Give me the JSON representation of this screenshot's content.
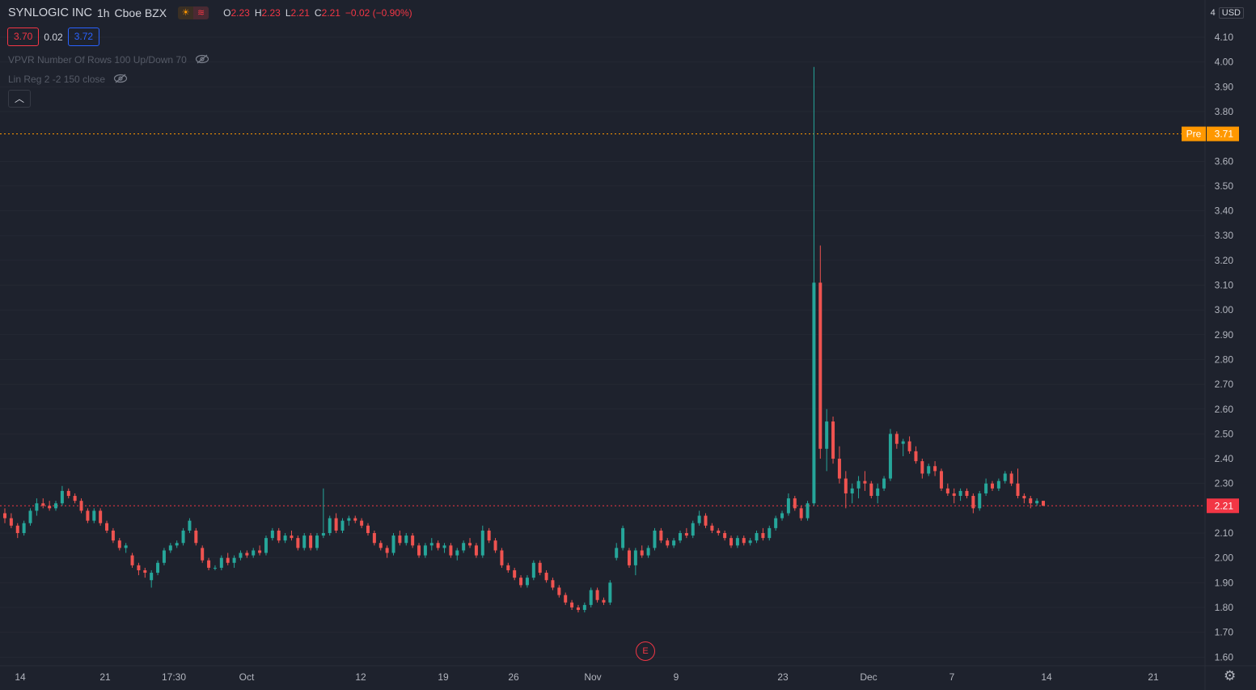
{
  "header": {
    "symbol": "SYNLOGIC INC",
    "interval": "1h",
    "exchange": "Cboe BZX",
    "open_label": "O",
    "open": "2.23",
    "high_label": "H",
    "high": "2.23",
    "low_label": "L",
    "low": "2.21",
    "close_label": "C",
    "close": "2.21",
    "change": "−0.02 (−0.90%)"
  },
  "quote": {
    "bid": "3.70",
    "spread": "0.02",
    "ask": "3.72"
  },
  "indicators": [
    {
      "label": "VPVR Number Of Rows 100 Up/Down 70",
      "icon": "eye-crossed-icon"
    },
    {
      "label": "Lin Reg 2 -2 150 close",
      "icon": "eye-crossed-icon"
    }
  ],
  "collapse_icon": "chevron-up-icon",
  "earnings_marker": "E",
  "currency": {
    "partial": "4",
    "unit": "USD"
  },
  "price_labels": {
    "pre": {
      "tag": "Pre",
      "value": "3.71",
      "color": "#ff9800"
    },
    "last": {
      "value": "2.21",
      "color": "#f23645"
    }
  },
  "colors": {
    "up": "#26a69a",
    "down": "#ef5350",
    "background": "#1e222d",
    "grid": "#2a2e39",
    "text": "#b2b5be"
  },
  "chart_data": {
    "type": "candlestick",
    "y_ticks": [
      "4.10",
      "4.00",
      "3.90",
      "3.80",
      "3.60",
      "3.50",
      "3.40",
      "3.30",
      "3.20",
      "3.10",
      "3.00",
      "2.90",
      "2.80",
      "2.70",
      "2.60",
      "2.50",
      "2.40",
      "2.30",
      "2.10",
      "2.00",
      "1.90",
      "1.80",
      "1.70",
      "1.60"
    ],
    "x_ticks": [
      "14",
      "21",
      "17:30",
      "Oct",
      "12",
      "19",
      "26",
      "Nov",
      "9",
      "23",
      "Dec",
      "7",
      "14",
      "21"
    ],
    "ylim": [
      1.56,
      4.15
    ],
    "candles": [
      [
        2.18,
        2.2,
        2.14,
        2.16
      ],
      [
        2.16,
        2.18,
        2.12,
        2.13
      ],
      [
        2.13,
        2.14,
        2.08,
        2.1
      ],
      [
        2.1,
        2.15,
        2.09,
        2.14
      ],
      [
        2.14,
        2.2,
        2.13,
        2.19
      ],
      [
        2.19,
        2.24,
        2.17,
        2.22
      ],
      [
        2.22,
        2.24,
        2.2,
        2.21
      ],
      [
        2.21,
        2.23,
        2.19,
        2.2
      ],
      [
        2.2,
        2.23,
        2.19,
        2.22
      ],
      [
        2.22,
        2.29,
        2.21,
        2.27
      ],
      [
        2.27,
        2.28,
        2.24,
        2.25
      ],
      [
        2.25,
        2.26,
        2.22,
        2.23
      ],
      [
        2.23,
        2.24,
        2.18,
        2.19
      ],
      [
        2.19,
        2.2,
        2.14,
        2.15
      ],
      [
        2.15,
        2.2,
        2.14,
        2.19
      ],
      [
        2.19,
        2.2,
        2.13,
        2.14
      ],
      [
        2.14,
        2.15,
        2.1,
        2.11
      ],
      [
        2.11,
        2.12,
        2.06,
        2.07
      ],
      [
        2.07,
        2.08,
        2.03,
        2.04
      ],
      [
        2.04,
        2.06,
        2.02,
        2.05
      ],
      [
        2.01,
        2.02,
        1.96,
        1.97
      ],
      [
        1.97,
        1.98,
        1.93,
        1.95
      ],
      [
        1.95,
        1.96,
        1.92,
        1.94
      ],
      [
        1.91,
        1.95,
        1.88,
        1.94
      ],
      [
        1.94,
        1.99,
        1.93,
        1.98
      ],
      [
        1.98,
        2.04,
        1.97,
        2.03
      ],
      [
        2.03,
        2.06,
        2.02,
        2.05
      ],
      [
        2.05,
        2.07,
        2.04,
        2.06
      ],
      [
        2.06,
        2.12,
        2.05,
        2.11
      ],
      [
        2.11,
        2.16,
        2.1,
        2.15
      ],
      [
        2.11,
        2.12,
        2.05,
        2.06
      ],
      [
        2.04,
        2.05,
        1.98,
        1.99
      ],
      [
        1.99,
        2.0,
        1.95,
        1.96
      ],
      [
        1.96,
        1.97,
        1.95,
        1.96
      ],
      [
        1.96,
        2.01,
        1.95,
        2.0
      ],
      [
        2.0,
        2.02,
        1.97,
        1.98
      ],
      [
        1.98,
        2.01,
        1.96,
        2.0
      ],
      [
        2.0,
        2.03,
        1.99,
        2.02
      ],
      [
        2.02,
        2.03,
        2.0,
        2.01
      ],
      [
        2.01,
        2.04,
        2.0,
        2.03
      ],
      [
        2.03,
        2.05,
        2.01,
        2.02
      ],
      [
        2.02,
        2.09,
        2.01,
        2.08
      ],
      [
        2.08,
        2.12,
        2.07,
        2.11
      ],
      [
        2.11,
        2.12,
        2.06,
        2.07
      ],
      [
        2.07,
        2.1,
        2.06,
        2.09
      ],
      [
        2.09,
        2.11,
        2.07,
        2.08
      ],
      [
        2.08,
        2.09,
        2.03,
        2.04
      ],
      [
        2.04,
        2.1,
        2.03,
        2.09
      ],
      [
        2.09,
        2.1,
        2.03,
        2.04
      ],
      [
        2.04,
        2.1,
        2.03,
        2.09
      ],
      [
        2.09,
        2.28,
        2.08,
        2.1
      ],
      [
        2.1,
        2.17,
        2.09,
        2.16
      ],
      [
        2.16,
        2.18,
        2.1,
        2.11
      ],
      [
        2.11,
        2.16,
        2.1,
        2.15
      ],
      [
        2.15,
        2.17,
        2.13,
        2.16
      ],
      [
        2.16,
        2.17,
        2.14,
        2.15
      ],
      [
        2.15,
        2.16,
        2.12,
        2.13
      ],
      [
        2.13,
        2.14,
        2.09,
        2.1
      ],
      [
        2.1,
        2.11,
        2.05,
        2.06
      ],
      [
        2.06,
        2.07,
        2.03,
        2.04
      ],
      [
        2.04,
        2.05,
        2.0,
        2.02
      ],
      [
        2.02,
        2.1,
        2.01,
        2.09
      ],
      [
        2.09,
        2.11,
        2.05,
        2.06
      ],
      [
        2.06,
        2.1,
        2.05,
        2.09
      ],
      [
        2.09,
        2.1,
        2.04,
        2.05
      ],
      [
        2.05,
        2.06,
        2.0,
        2.01
      ],
      [
        2.01,
        2.06,
        2.0,
        2.05
      ],
      [
        2.05,
        2.08,
        2.03,
        2.06
      ],
      [
        2.06,
        2.07,
        2.03,
        2.04
      ],
      [
        2.04,
        2.06,
        2.02,
        2.05
      ],
      [
        2.05,
        2.06,
        2.0,
        2.01
      ],
      [
        2.01,
        2.04,
        1.99,
        2.03
      ],
      [
        2.03,
        2.07,
        2.02,
        2.06
      ],
      [
        2.06,
        2.08,
        2.04,
        2.05
      ],
      [
        2.05,
        2.06,
        2.0,
        2.01
      ],
      [
        2.01,
        2.13,
        2.0,
        2.11
      ],
      [
        2.11,
        2.12,
        2.06,
        2.07
      ],
      [
        2.07,
        2.08,
        2.02,
        2.03
      ],
      [
        2.03,
        2.04,
        1.96,
        1.97
      ],
      [
        1.97,
        1.98,
        1.94,
        1.95
      ],
      [
        1.95,
        1.96,
        1.91,
        1.92
      ],
      [
        1.92,
        1.93,
        1.88,
        1.89
      ],
      [
        1.89,
        1.93,
        1.88,
        1.92
      ],
      [
        1.92,
        1.99,
        1.91,
        1.98
      ],
      [
        1.98,
        1.99,
        1.93,
        1.94
      ],
      [
        1.94,
        1.95,
        1.9,
        1.91
      ],
      [
        1.91,
        1.92,
        1.87,
        1.88
      ],
      [
        1.88,
        1.89,
        1.84,
        1.85
      ],
      [
        1.85,
        1.86,
        1.81,
        1.82
      ],
      [
        1.82,
        1.83,
        1.79,
        1.8
      ],
      [
        1.8,
        1.81,
        1.78,
        1.79
      ],
      [
        1.79,
        1.82,
        1.78,
        1.81
      ],
      [
        1.81,
        1.88,
        1.8,
        1.87
      ],
      [
        1.87,
        1.88,
        1.82,
        1.83
      ],
      [
        1.83,
        1.84,
        1.81,
        1.82
      ],
      [
        1.82,
        1.91,
        1.81,
        1.9
      ],
      [
        2.0,
        2.06,
        1.99,
        2.04
      ],
      [
        2.04,
        2.13,
        2.03,
        2.12
      ],
      [
        2.03,
        2.04,
        1.96,
        1.97
      ],
      [
        1.97,
        2.04,
        1.93,
        2.03
      ],
      [
        2.03,
        2.05,
        2.0,
        2.01
      ],
      [
        2.01,
        2.05,
        2.0,
        2.04
      ],
      [
        2.04,
        2.12,
        2.03,
        2.11
      ],
      [
        2.11,
        2.12,
        2.06,
        2.07
      ],
      [
        2.07,
        2.08,
        2.04,
        2.05
      ],
      [
        2.05,
        2.08,
        2.04,
        2.07
      ],
      [
        2.07,
        2.11,
        2.06,
        2.1
      ],
      [
        2.1,
        2.12,
        2.08,
        2.09
      ],
      [
        2.09,
        2.15,
        2.08,
        2.14
      ],
      [
        2.14,
        2.19,
        2.13,
        2.17
      ],
      [
        2.17,
        2.18,
        2.12,
        2.13
      ],
      [
        2.13,
        2.14,
        2.1,
        2.11
      ],
      [
        2.11,
        2.12,
        2.09,
        2.1
      ],
      [
        2.1,
        2.11,
        2.07,
        2.08
      ],
      [
        2.08,
        2.09,
        2.04,
        2.05
      ],
      [
        2.05,
        2.09,
        2.04,
        2.08
      ],
      [
        2.08,
        2.09,
        2.05,
        2.06
      ],
      [
        2.06,
        2.08,
        2.05,
        2.07
      ],
      [
        2.07,
        2.11,
        2.06,
        2.1
      ],
      [
        2.1,
        2.12,
        2.07,
        2.08
      ],
      [
        2.08,
        2.13,
        2.07,
        2.12
      ],
      [
        2.12,
        2.17,
        2.11,
        2.16
      ],
      [
        2.16,
        2.19,
        2.15,
        2.18
      ],
      [
        2.18,
        2.26,
        2.17,
        2.24
      ],
      [
        2.24,
        2.25,
        2.19,
        2.2
      ],
      [
        2.2,
        2.21,
        2.15,
        2.16
      ],
      [
        2.16,
        2.23,
        2.15,
        2.22
      ],
      [
        2.22,
        3.98,
        2.21,
        3.11
      ],
      [
        3.11,
        3.26,
        2.4,
        2.44
      ],
      [
        2.44,
        2.6,
        2.35,
        2.55
      ],
      [
        2.55,
        2.57,
        2.38,
        2.4
      ],
      [
        2.4,
        2.45,
        2.3,
        2.32
      ],
      [
        2.32,
        2.35,
        2.2,
        2.26
      ],
      [
        2.26,
        2.3,
        2.22,
        2.28
      ],
      [
        2.28,
        2.33,
        2.24,
        2.31
      ],
      [
        2.31,
        2.35,
        2.27,
        2.3
      ],
      [
        2.3,
        2.31,
        2.24,
        2.25
      ],
      [
        2.25,
        2.3,
        2.22,
        2.28
      ],
      [
        2.28,
        2.33,
        2.27,
        2.32
      ],
      [
        2.32,
        2.52,
        2.31,
        2.5
      ],
      [
        2.5,
        2.51,
        2.44,
        2.46
      ],
      [
        2.46,
        2.48,
        2.41,
        2.47
      ],
      [
        2.47,
        2.49,
        2.42,
        2.43
      ],
      [
        2.43,
        2.45,
        2.38,
        2.39
      ],
      [
        2.39,
        2.4,
        2.32,
        2.34
      ],
      [
        2.34,
        2.38,
        2.33,
        2.37
      ],
      [
        2.37,
        2.39,
        2.33,
        2.35
      ],
      [
        2.35,
        2.36,
        2.27,
        2.28
      ],
      [
        2.28,
        2.3,
        2.25,
        2.26
      ],
      [
        2.26,
        2.28,
        2.22,
        2.25
      ],
      [
        2.25,
        2.28,
        2.23,
        2.27
      ],
      [
        2.27,
        2.28,
        2.24,
        2.25
      ],
      [
        2.25,
        2.26,
        2.18,
        2.2
      ],
      [
        2.2,
        2.27,
        2.19,
        2.26
      ],
      [
        2.26,
        2.32,
        2.25,
        2.3
      ],
      [
        2.3,
        2.31,
        2.27,
        2.28
      ],
      [
        2.28,
        2.32,
        2.27,
        2.31
      ],
      [
        2.31,
        2.35,
        2.3,
        2.34
      ],
      [
        2.34,
        2.35,
        2.29,
        2.3
      ],
      [
        2.3,
        2.36,
        2.24,
        2.25
      ],
      [
        2.25,
        2.26,
        2.22,
        2.24
      ],
      [
        2.24,
        2.25,
        2.2,
        2.22
      ],
      [
        2.22,
        2.24,
        2.21,
        2.23
      ],
      [
        2.23,
        2.23,
        2.21,
        2.21
      ]
    ]
  }
}
